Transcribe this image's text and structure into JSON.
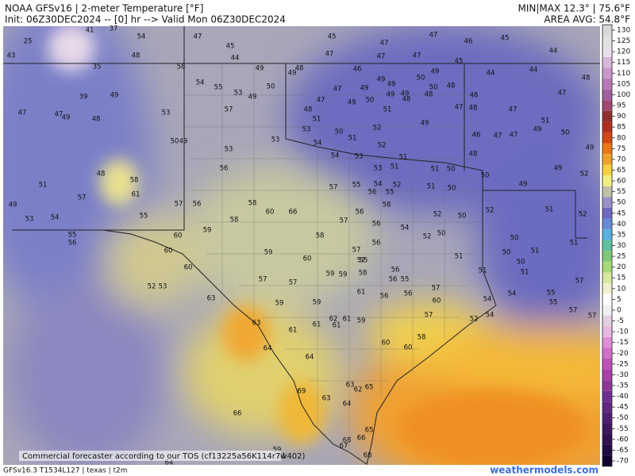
{
  "header": {
    "title": "NOAA GFSv16 | 2-meter Temperature [°F]",
    "init": "Init: 06Z30DEC2024 -- [0] hr --> Valid Mon 06Z30DEC2024",
    "minmax": "MIN|MAX 12.3° | 75.6°F",
    "area_avg": "AREA AVG: 54.8°F"
  },
  "colorbar": {
    "ticks": [
      130,
      125,
      120,
      115,
      110,
      105,
      100,
      95,
      90,
      85,
      80,
      75,
      70,
      65,
      60,
      55,
      50,
      45,
      40,
      35,
      30,
      25,
      20,
      15,
      10,
      5,
      0,
      -5,
      -10,
      -15,
      -20,
      -25,
      -30,
      -35,
      -40,
      -45,
      -50,
      -55,
      -60,
      -65,
      -70
    ]
  },
  "stations": [
    25,
    41,
    37,
    54,
    47,
    45,
    45,
    47,
    47,
    46,
    45,
    44,
    43,
    35,
    48,
    58,
    44,
    47,
    47,
    47,
    45,
    49,
    48,
    49,
    46,
    49,
    50,
    49,
    44,
    44,
    48,
    54,
    55,
    50,
    49,
    49,
    50,
    48,
    39,
    49,
    53,
    49,
    47,
    49,
    50,
    49,
    48,
    48,
    47,
    48,
    47,
    47,
    49,
    48,
    53,
    57,
    48,
    51,
    49,
    51,
    47,
    48,
    47,
    47,
    53,
    50,
    51,
    52,
    49,
    49,
    51,
    50,
    49,
    53,
    54,
    52,
    46,
    47,
    47,
    50,
    53,
    54,
    53,
    51,
    48,
    49,
    48,
    58,
    56,
    53,
    51,
    51,
    50,
    50,
    49,
    52,
    51,
    61,
    57,
    55,
    54,
    56,
    55,
    52,
    51,
    50,
    49,
    57,
    57,
    56,
    58,
    60,
    66,
    56,
    58,
    52,
    50,
    52,
    51,
    52,
    49,
    53,
    54,
    55,
    58,
    59,
    58,
    57,
    56,
    54,
    52,
    50,
    55,
    56,
    60,
    59,
    60,
    57,
    57,
    56,
    55,
    51,
    50,
    50,
    51,
    51,
    60,
    60,
    56,
    51,
    50,
    51,
    52,
    53,
    57,
    57,
    59,
    59,
    58,
    56,
    55,
    57,
    57,
    63,
    59,
    59,
    61,
    56,
    56,
    60,
    54,
    54,
    55,
    55,
    63,
    61,
    61,
    62,
    61,
    61,
    59,
    57,
    52,
    54,
    57,
    57,
    64,
    60,
    60,
    58,
    64,
    63,
    62,
    65,
    69,
    63,
    64,
    66,
    65,
    66,
    68,
    67,
    68,
    59,
    61,
    64
  ],
  "footer": {
    "model": "GFSv16.3 T1534L127 | texas | t2m",
    "tos": "Commercial forecaster according to our TOS (cf13225a56K114r7w402)",
    "brand": "weathermodels.com"
  }
}
